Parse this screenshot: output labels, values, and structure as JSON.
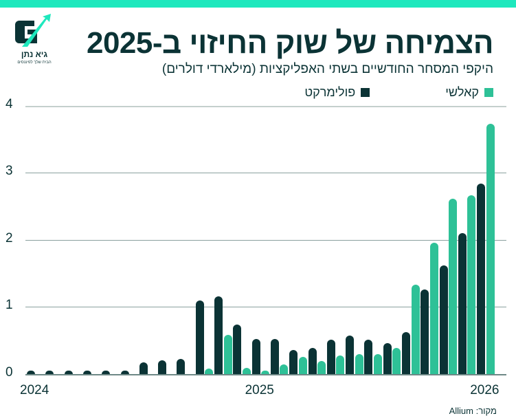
{
  "colors": {
    "banner": "#1ee8bd",
    "kalshi": "#2ec197",
    "polymarket": "#0b3335",
    "title": "#0b3335"
  },
  "logo": {
    "name": "גיא נתן",
    "tagline": "הבית שלך לפיננסים"
  },
  "header": {
    "title": "הצמיחה של שוק החיזוי ב-2025",
    "subtitle": "היקפי המסחר החודשיים בשתי האפליקציות (מילארדי דולרים)"
  },
  "legend": {
    "kalshi": "קאלשי",
    "polymarket": "פולימרקט"
  },
  "footer": {
    "source": "מקור: Allium"
  },
  "chart_data": {
    "type": "bar",
    "title": "הצמיחה של שוק החיזוי ב-2025",
    "subtitle": "היקפי המסחר החודשיים בשתי האפליקציות (מילארדי דולרים)",
    "xlabel": "",
    "ylabel": "",
    "ylim": [
      0,
      4
    ],
    "yticks": [
      0,
      1,
      2,
      3,
      4
    ],
    "xtick_labels": [
      {
        "label": "2024",
        "index": 0
      },
      {
        "label": "2025",
        "index": 12
      },
      {
        "label": "2026",
        "index": 24
      }
    ],
    "grid": true,
    "legend_position": "top",
    "categories": [
      "2024-01",
      "2024-02",
      "2024-03",
      "2024-04",
      "2024-05",
      "2024-06",
      "2024-07",
      "2024-08",
      "2024-09",
      "2024-10",
      "2024-11",
      "2024-12",
      "2025-01",
      "2025-02",
      "2025-03",
      "2025-04",
      "2025-05",
      "2025-06",
      "2025-07",
      "2025-08",
      "2025-09",
      "2025-10",
      "2025-11",
      "2025-12",
      "2026-01"
    ],
    "series": [
      {
        "name": "פולימרקט",
        "color": "#0b3335",
        "values": [
          0.02,
          0.01,
          0.01,
          0.01,
          0.02,
          0.05,
          0.17,
          0.21,
          0.23,
          1.1,
          1.16,
          0.74,
          0.52,
          0.52,
          0.36,
          0.39,
          0.51,
          0.57,
          0.51,
          0.46,
          0.62,
          1.26,
          1.62,
          2.1,
          2.84
        ]
      },
      {
        "name": "קאלשי",
        "color": "#2ec197",
        "values": [
          0,
          0,
          0,
          0,
          0,
          0,
          0,
          0,
          0,
          0.08,
          0.58,
          0.09,
          0.05,
          0.14,
          0.26,
          0.19,
          0.28,
          0.3,
          0.3,
          0.39,
          1.33,
          1.96,
          2.61,
          2.66,
          3.73
        ]
      }
    ]
  }
}
